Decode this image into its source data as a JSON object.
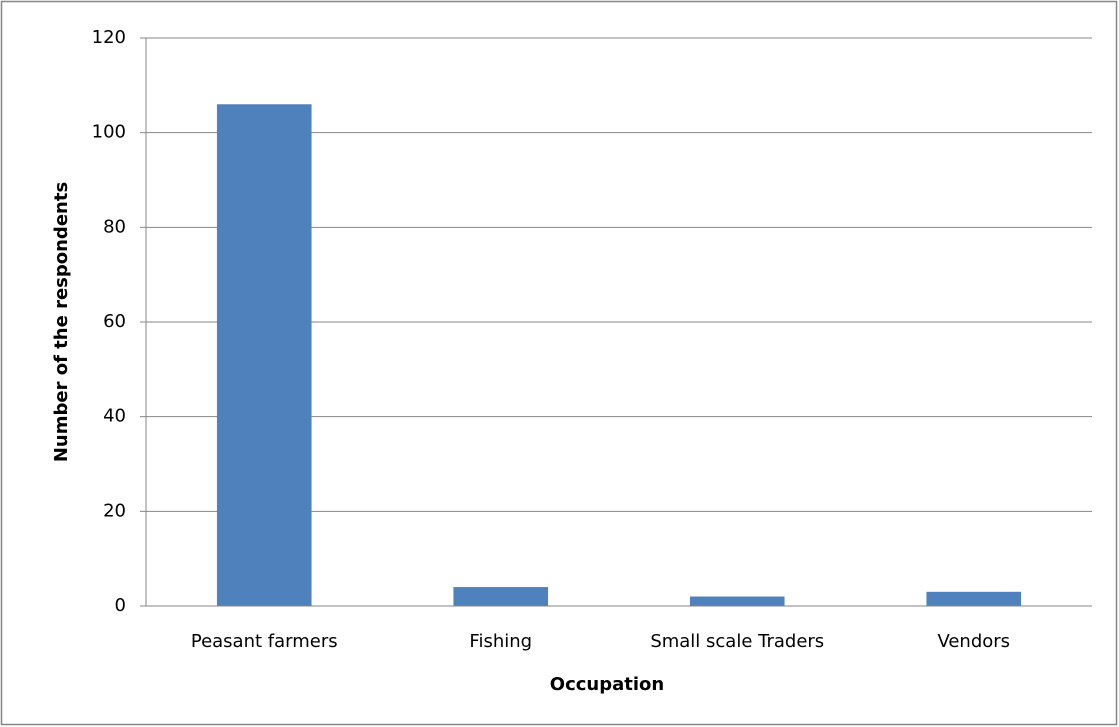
{
  "chart_data": {
    "type": "bar",
    "x_label": "Occupation",
    "y_label": "Number of the respondents",
    "categories": [
      "Peasant farmers",
      "Fishing",
      "Small scale Traders",
      "Vendors"
    ],
    "values": [
      106,
      4,
      2,
      3
    ],
    "color": "#4f81bd",
    "ylim": [
      0,
      120
    ],
    "yticks": [
      0,
      20,
      40,
      60,
      80,
      100,
      120
    ],
    "grid": true
  }
}
